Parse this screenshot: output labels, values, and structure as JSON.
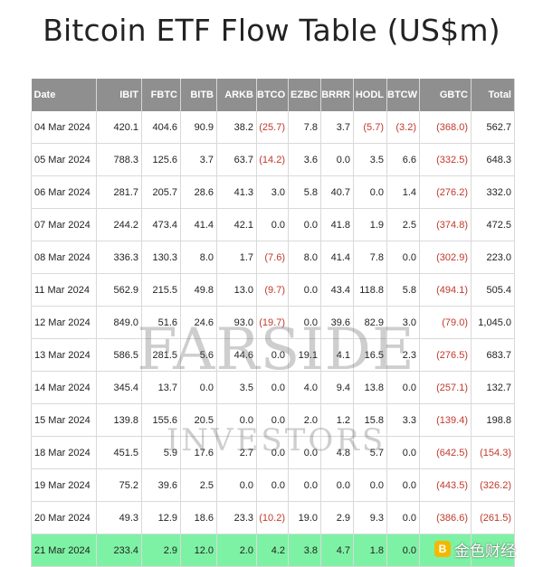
{
  "title": "Bitcoin ETF Flow Table (US$m)",
  "columns": [
    "Date",
    "IBIT",
    "FBTC",
    "BITB",
    "ARKB",
    "BTCO",
    "EZBC",
    "BRRR",
    "HODL",
    "BTCW",
    "GBTC",
    "Total"
  ],
  "rows": [
    [
      "04 Mar 2024",
      "420.1",
      "404.6",
      "90.9",
      "38.2",
      "(25.7)",
      "7.8",
      "3.7",
      "(5.7)",
      "(3.2)",
      "(368.0)",
      "562.7"
    ],
    [
      "05 Mar 2024",
      "788.3",
      "125.6",
      "3.7",
      "63.7",
      "(14.2)",
      "3.6",
      "0.0",
      "3.5",
      "6.6",
      "(332.5)",
      "648.3"
    ],
    [
      "06 Mar 2024",
      "281.7",
      "205.7",
      "28.6",
      "41.3",
      "3.0",
      "5.8",
      "40.7",
      "0.0",
      "1.4",
      "(276.2)",
      "332.0"
    ],
    [
      "07 Mar 2024",
      "244.2",
      "473.4",
      "41.4",
      "42.1",
      "0.0",
      "0.0",
      "41.8",
      "1.9",
      "2.5",
      "(374.8)",
      "472.5"
    ],
    [
      "08 Mar 2024",
      "336.3",
      "130.3",
      "8.0",
      "1.7",
      "(7.6)",
      "8.0",
      "41.4",
      "7.8",
      "0.0",
      "(302.9)",
      "223.0"
    ],
    [
      "11 Mar 2024",
      "562.9",
      "215.5",
      "49.8",
      "13.0",
      "(9.7)",
      "0.0",
      "43.4",
      "118.8",
      "5.8",
      "(494.1)",
      "505.4"
    ],
    [
      "12 Mar 2024",
      "849.0",
      "51.6",
      "24.6",
      "93.0",
      "(19.7)",
      "0.0",
      "39.6",
      "82.9",
      "3.0",
      "(79.0)",
      "1,045.0"
    ],
    [
      "13 Mar 2024",
      "586.5",
      "281.5",
      "5.6",
      "44.6",
      "0.0",
      "19.1",
      "4.1",
      "16.5",
      "2.3",
      "(276.5)",
      "683.7"
    ],
    [
      "14 Mar 2024",
      "345.4",
      "13.7",
      "0.0",
      "3.5",
      "0.0",
      "4.0",
      "9.4",
      "13.8",
      "0.0",
      "(257.1)",
      "132.7"
    ],
    [
      "15 Mar 2024",
      "139.8",
      "155.6",
      "20.5",
      "0.0",
      "0.0",
      "2.0",
      "1.2",
      "15.8",
      "3.3",
      "(139.4)",
      "198.8"
    ],
    [
      "18 Mar 2024",
      "451.5",
      "5.9",
      "17.6",
      "2.7",
      "0.0",
      "0.0",
      "4.8",
      "5.7",
      "0.0",
      "(642.5)",
      "(154.3)"
    ],
    [
      "19 Mar 2024",
      "75.2",
      "39.6",
      "2.5",
      "0.0",
      "0.0",
      "0.0",
      "0.0",
      "0.0",
      "0.0",
      "(443.5)",
      "(326.2)"
    ],
    [
      "20 Mar 2024",
      "49.3",
      "12.9",
      "18.6",
      "23.3",
      "(10.2)",
      "19.0",
      "2.9",
      "9.3",
      "0.0",
      "(386.6)",
      "(261.5)"
    ],
    [
      "21 Mar 2024",
      "233.4",
      "2.9",
      "12.0",
      "2.0",
      "4.2",
      "3.8",
      "4.7",
      "1.8",
      "0.0",
      "",
      ""
    ]
  ],
  "highlight_row": 13,
  "watermark": {
    "main": "FARSIDE",
    "sub": "INVESTORS"
  },
  "badge": {
    "icon": "B",
    "text": "金色财经"
  },
  "colors": {
    "header_bg": "#8f8f8f",
    "negative": "#c0392b",
    "highlight": "#7ef2a4"
  }
}
